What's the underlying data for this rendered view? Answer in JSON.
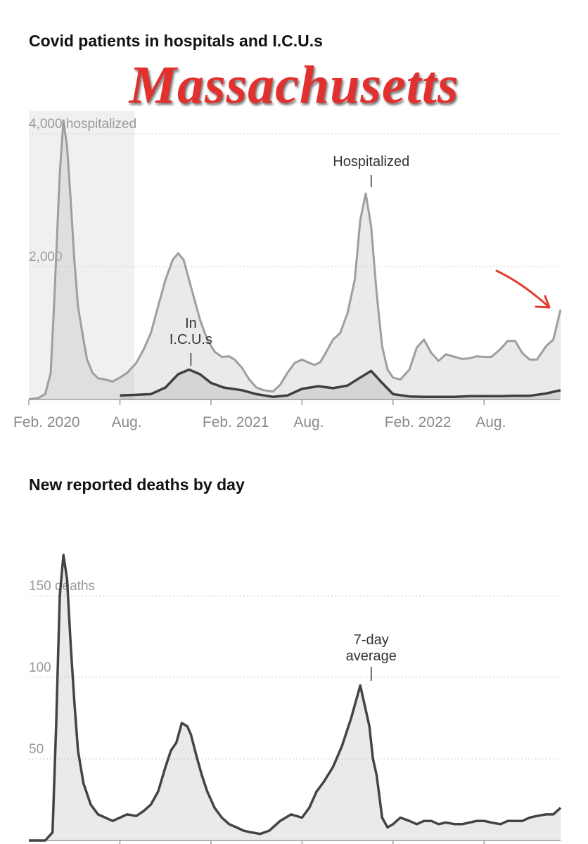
{
  "overlay_text": "Massachusetts",
  "chart_data": [
    {
      "type": "area",
      "title": "Covid patients in hospitals and I.C.U.s",
      "xlabel": "",
      "ylabel": "",
      "ylim": [
        0,
        4000
      ],
      "y_tick_labels": [
        "4,000 hospitalized",
        "2,000"
      ],
      "y_tick_values": [
        4000,
        2000
      ],
      "x_tick_labels": [
        "Feb. 2020",
        "Aug.",
        "Feb. 2021",
        "Aug.",
        "Feb. 2022",
        "Aug."
      ],
      "x_tick_values": [
        2020.08,
        2020.58,
        2021.08,
        2021.58,
        2022.08,
        2022.58
      ],
      "xlim": [
        2020.08,
        2023.0
      ],
      "grid": true,
      "annotations": [
        {
          "text": "Hospitalized",
          "x": 2021.96,
          "series": "Hospitalized"
        },
        {
          "lines": [
            "In",
            "I.C.U.s"
          ],
          "x": 2020.97,
          "series": "In I.C.U.s"
        }
      ],
      "series": [
        {
          "name": "Hospitalized",
          "x": [
            2020.08,
            2020.13,
            2020.17,
            2020.2,
            2020.22,
            2020.25,
            2020.27,
            2020.29,
            2020.31,
            2020.33,
            2020.35,
            2020.38,
            2020.4,
            2020.43,
            2020.46,
            2020.5,
            2020.54,
            2020.58,
            2020.62,
            2020.67,
            2020.71,
            2020.75,
            2020.79,
            2020.83,
            2020.87,
            2020.9,
            2020.93,
            2020.96,
            2020.99,
            2021.02,
            2021.06,
            2021.1,
            2021.14,
            2021.18,
            2021.21,
            2021.25,
            2021.29,
            2021.33,
            2021.37,
            2021.42,
            2021.46,
            2021.5,
            2021.54,
            2021.58,
            2021.62,
            2021.65,
            2021.68,
            2021.71,
            2021.75,
            2021.79,
            2021.83,
            2021.87,
            2021.9,
            2021.93,
            2021.96,
            2021.99,
            2022.02,
            2022.05,
            2022.08,
            2022.12,
            2022.17,
            2022.21,
            2022.25,
            2022.29,
            2022.33,
            2022.37,
            2022.42,
            2022.46,
            2022.5,
            2022.54,
            2022.58,
            2022.62,
            2022.67,
            2022.71,
            2022.75,
            2022.79,
            2022.83,
            2022.87,
            2022.92,
            2022.96,
            2023.0
          ],
          "values": [
            5,
            20,
            80,
            400,
            1500,
            3400,
            4200,
            3800,
            3000,
            2100,
            1400,
            900,
            600,
            400,
            320,
            300,
            270,
            330,
            400,
            550,
            750,
            1000,
            1400,
            1800,
            2100,
            2200,
            2100,
            1800,
            1500,
            1200,
            900,
            720,
            640,
            650,
            600,
            480,
            300,
            180,
            140,
            120,
            220,
            400,
            550,
            600,
            550,
            520,
            560,
            700,
            900,
            1000,
            1300,
            1800,
            2700,
            3100,
            2600,
            1600,
            800,
            450,
            330,
            300,
            450,
            780,
            900,
            700,
            580,
            680,
            640,
            610,
            620,
            650,
            640,
            640,
            760,
            880,
            880,
            700,
            600,
            600,
            800,
            900,
            1350
          ]
        },
        {
          "name": "In I.C.U.s",
          "x": [
            2020.58,
            2020.67,
            2020.75,
            2020.83,
            2020.9,
            2020.96,
            2021.02,
            2021.08,
            2021.15,
            2021.25,
            2021.33,
            2021.42,
            2021.5,
            2021.58,
            2021.67,
            2021.75,
            2021.83,
            2021.9,
            2021.96,
            2022.02,
            2022.08,
            2022.17,
            2022.25,
            2022.33,
            2022.42,
            2022.5,
            2022.58,
            2022.67,
            2022.75,
            2022.83,
            2022.92,
            2023.0
          ],
          "values": [
            60,
            70,
            80,
            180,
            380,
            450,
            380,
            250,
            180,
            140,
            80,
            40,
            60,
            160,
            200,
            170,
            210,
            330,
            430,
            250,
            80,
            45,
            40,
            40,
            40,
            50,
            50,
            50,
            55,
            55,
            90,
            140
          ]
        }
      ]
    },
    {
      "type": "area",
      "title": "New reported deaths by day",
      "xlabel": "",
      "ylabel": "",
      "ylim": [
        0,
        150
      ],
      "y_tick_labels": [
        "150 deaths",
        "100",
        "50"
      ],
      "y_tick_values": [
        150,
        100,
        50
      ],
      "xlim": [
        2020.08,
        2023.0
      ],
      "grid": true,
      "annotations": [
        {
          "lines": [
            "7-day",
            "average"
          ],
          "x": 2021.96,
          "series": "7-day average"
        }
      ],
      "series": [
        {
          "name": "7-day average",
          "x": [
            2020.08,
            2020.17,
            2020.21,
            2020.23,
            2020.25,
            2020.27,
            2020.29,
            2020.31,
            2020.33,
            2020.35,
            2020.38,
            2020.42,
            2020.46,
            2020.5,
            2020.54,
            2020.58,
            2020.62,
            2020.67,
            2020.71,
            2020.75,
            2020.79,
            2020.83,
            2020.86,
            2020.89,
            2020.92,
            2020.95,
            2020.97,
            2021.0,
            2021.03,
            2021.06,
            2021.1,
            2021.14,
            2021.18,
            2021.22,
            2021.26,
            2021.3,
            2021.35,
            2021.4,
            2021.46,
            2021.52,
            2021.58,
            2021.62,
            2021.66,
            2021.7,
            2021.75,
            2021.8,
            2021.85,
            2021.9,
            2021.93,
            2021.95,
            2021.96,
            2021.97,
            2021.99,
            2022.02,
            2022.05,
            2022.08,
            2022.12,
            2022.17,
            2022.21,
            2022.25,
            2022.29,
            2022.33,
            2022.37,
            2022.42,
            2022.46,
            2022.5,
            2022.54,
            2022.58,
            2022.62,
            2022.67,
            2022.71,
            2022.75,
            2022.79,
            2022.83,
            2022.87,
            2022.92,
            2022.96,
            2023.0
          ],
          "values": [
            0,
            0,
            5,
            70,
            150,
            175,
            160,
            120,
            85,
            55,
            35,
            22,
            16,
            14,
            12,
            14,
            16,
            15,
            18,
            22,
            30,
            45,
            55,
            60,
            72,
            70,
            65,
            52,
            40,
            30,
            20,
            14,
            10,
            8,
            6,
            5,
            4,
            6,
            12,
            16,
            14,
            20,
            30,
            36,
            45,
            58,
            75,
            95,
            80,
            70,
            60,
            50,
            40,
            14,
            8,
            10,
            14,
            12,
            10,
            12,
            12,
            10,
            11,
            10,
            10,
            11,
            12,
            12,
            11,
            10,
            12,
            12,
            12,
            14,
            15,
            16,
            16,
            20
          ]
        }
      ]
    }
  ]
}
